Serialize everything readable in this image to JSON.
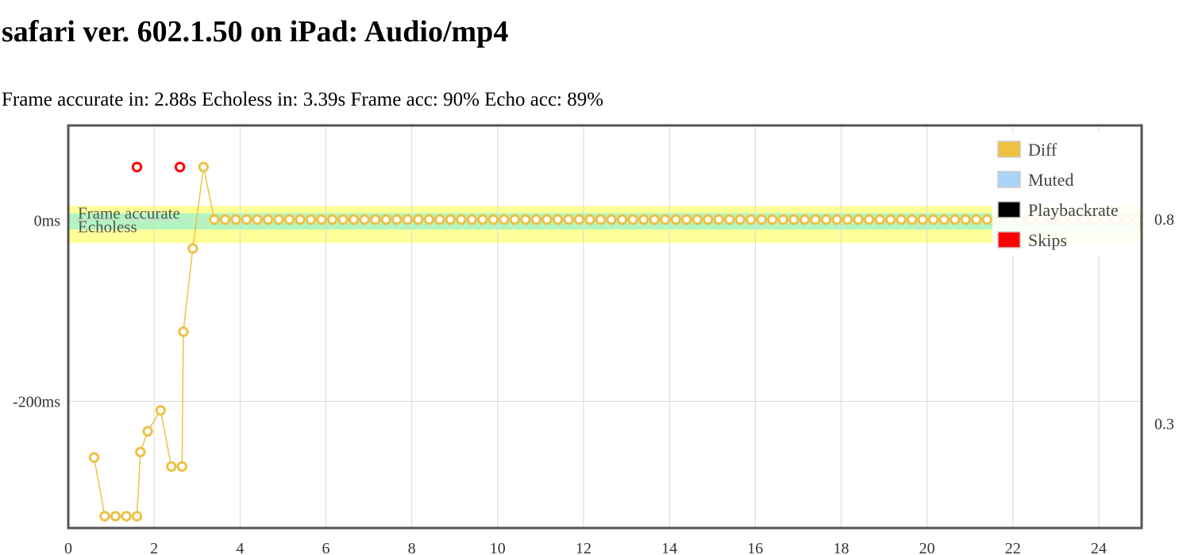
{
  "page": {
    "title": "safari ver. 602.1.50 on iPad: Audio/mp4",
    "stats": "Frame accurate in: 2.88s Echoless in: 3.39s Frame acc: 90% Echo acc: 89%"
  },
  "chart_data": {
    "type": "scatter",
    "x_ticks": [
      "0",
      "2",
      "4",
      "6",
      "8",
      "10",
      "12",
      "14",
      "16",
      "18",
      "20",
      "22",
      "24"
    ],
    "y_ticks_left": [
      {
        "value": 0,
        "label": "0ms"
      },
      {
        "value": -200,
        "label": "-200ms"
      }
    ],
    "y_ticks_right": [
      {
        "value": 0.8,
        "label": "0.8"
      },
      {
        "value": 0.3,
        "label": "0.3"
      }
    ],
    "xlim": [
      0,
      25
    ],
    "ylim": [
      -340,
      105
    ],
    "grid": true,
    "legend_position": "top-right",
    "bands": [
      {
        "name": "Frame accurate",
        "from": -25,
        "to": 16,
        "color": "#ffff99"
      },
      {
        "name": "Echoless",
        "from": -10,
        "to": 8,
        "color": "#b3f5c0"
      }
    ],
    "legend": [
      {
        "label": "Diff",
        "color": "#f0c040"
      },
      {
        "label": "Muted",
        "color": "#aad4f7"
      },
      {
        "label": "Playbackrate",
        "color": "#000000"
      },
      {
        "label": "Skips",
        "color": "#ff0000"
      }
    ],
    "series": [
      {
        "name": "Diff",
        "color": "#ecc247",
        "points": [
          [
            0.6,
            -262
          ],
          [
            0.85,
            -327
          ],
          [
            1.1,
            -327
          ],
          [
            1.35,
            -327
          ],
          [
            1.6,
            -327
          ],
          [
            1.68,
            -256
          ],
          [
            1.85,
            -233
          ],
          [
            2.15,
            -210
          ],
          [
            2.4,
            -272
          ],
          [
            2.65,
            -272
          ],
          [
            2.68,
            -123
          ],
          [
            2.9,
            -31
          ],
          [
            3.15,
            59
          ],
          [
            3.4,
            1
          ],
          [
            3.65,
            1
          ],
          [
            3.9,
            1
          ],
          [
            4.15,
            1
          ],
          [
            4.4,
            1
          ],
          [
            4.65,
            1
          ],
          [
            4.9,
            1
          ],
          [
            5.15,
            1
          ],
          [
            5.4,
            1
          ],
          [
            5.65,
            1
          ],
          [
            5.9,
            1
          ],
          [
            6.15,
            1
          ],
          [
            6.4,
            1
          ],
          [
            6.65,
            1
          ],
          [
            6.9,
            1
          ],
          [
            7.15,
            1
          ],
          [
            7.4,
            1
          ],
          [
            7.65,
            1
          ],
          [
            7.9,
            1
          ],
          [
            8.15,
            1
          ],
          [
            8.4,
            1
          ],
          [
            8.65,
            1
          ],
          [
            8.9,
            1
          ],
          [
            9.15,
            1
          ],
          [
            9.4,
            1
          ],
          [
            9.65,
            1
          ],
          [
            9.9,
            1
          ],
          [
            10.15,
            1
          ],
          [
            10.4,
            1
          ],
          [
            10.65,
            1
          ],
          [
            10.9,
            1
          ],
          [
            11.15,
            1
          ],
          [
            11.4,
            1
          ],
          [
            11.65,
            1
          ],
          [
            11.9,
            1
          ],
          [
            12.15,
            1
          ],
          [
            12.4,
            1
          ],
          [
            12.65,
            1
          ],
          [
            12.9,
            1
          ],
          [
            13.15,
            1
          ],
          [
            13.4,
            1
          ],
          [
            13.65,
            1
          ],
          [
            13.9,
            1
          ],
          [
            14.15,
            1
          ],
          [
            14.4,
            1
          ],
          [
            14.65,
            1
          ],
          [
            14.9,
            1
          ],
          [
            15.15,
            1
          ],
          [
            15.4,
            1
          ],
          [
            15.65,
            1
          ],
          [
            15.9,
            1
          ],
          [
            16.15,
            1
          ],
          [
            16.4,
            1
          ],
          [
            16.65,
            1
          ],
          [
            16.9,
            1
          ],
          [
            17.15,
            1
          ],
          [
            17.4,
            1
          ],
          [
            17.65,
            1
          ],
          [
            17.9,
            1
          ],
          [
            18.15,
            1
          ],
          [
            18.4,
            1
          ],
          [
            18.65,
            1
          ],
          [
            18.9,
            1
          ],
          [
            19.15,
            1
          ],
          [
            19.4,
            1
          ],
          [
            19.65,
            1
          ],
          [
            19.9,
            1
          ],
          [
            20.15,
            1
          ],
          [
            20.4,
            1
          ],
          [
            20.65,
            1
          ],
          [
            20.9,
            1
          ],
          [
            21.15,
            1
          ],
          [
            21.4,
            1
          ],
          [
            21.65,
            1
          ],
          [
            21.9,
            1
          ],
          [
            22.15,
            1
          ],
          [
            22.4,
            1
          ],
          [
            22.65,
            1
          ],
          [
            22.9,
            1
          ],
          [
            23.15,
            1
          ],
          [
            23.4,
            1
          ],
          [
            23.65,
            1
          ],
          [
            23.9,
            1
          ],
          [
            24.15,
            1
          ],
          [
            24.4,
            1
          ],
          [
            24.65,
            1
          ],
          [
            24.9,
            1
          ]
        ]
      },
      {
        "name": "Skips",
        "color": "#ff0000",
        "points": [
          [
            1.6,
            59
          ],
          [
            2.6,
            59
          ]
        ]
      }
    ]
  }
}
